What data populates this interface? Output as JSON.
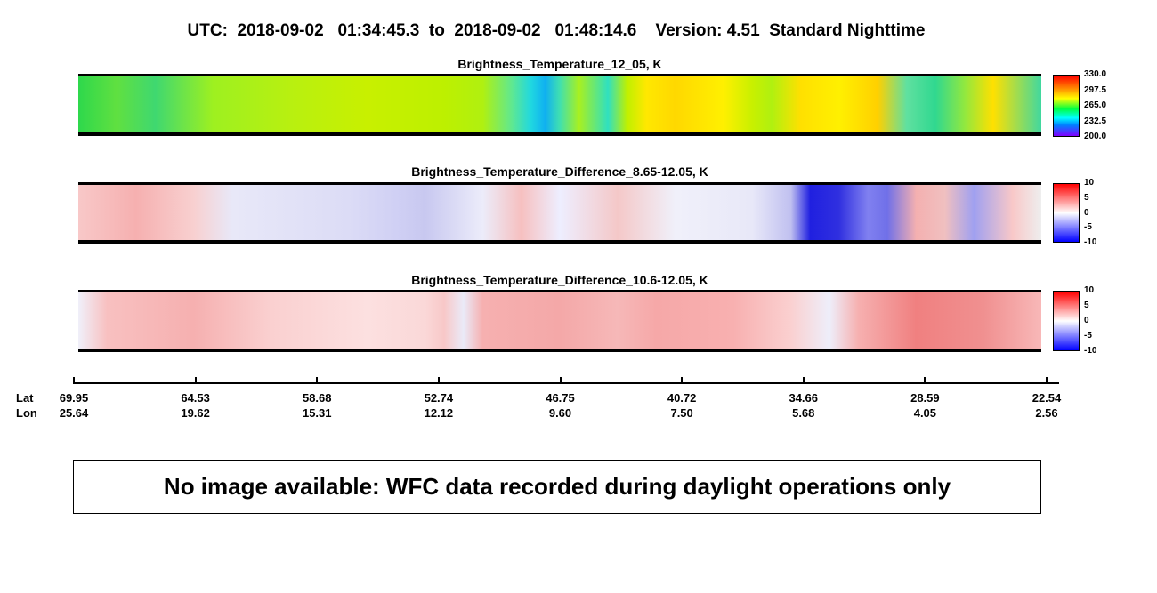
{
  "header": {
    "title": "UTC:  2018-09-02   01:34:45.3  to  2018-09-02   01:48:14.6    Version: 4.51  Standard Nighttime"
  },
  "panels": [
    {
      "title": "Brightness_Temperature_12_05, K",
      "colorbar_ticks": [
        "330.0",
        "297.5",
        "265.0",
        "232.5",
        "200.0"
      ]
    },
    {
      "title": "Brightness_Temperature_Difference_8.65-12.05, K",
      "colorbar_ticks": [
        "10",
        "5",
        "0",
        "-5",
        "-10"
      ]
    },
    {
      "title": "Brightness_Temperature_Difference_10.6-12.05, K",
      "colorbar_ticks": [
        "10",
        "5",
        "0",
        "-5",
        "-10"
      ]
    }
  ],
  "axis": {
    "row_labels": [
      "Lat",
      "Lon"
    ],
    "lat": [
      "69.95",
      "64.53",
      "58.68",
      "52.74",
      "46.75",
      "40.72",
      "34.66",
      "28.59",
      "22.54"
    ],
    "lon": [
      "25.64",
      "19.62",
      "15.31",
      "12.12",
      "9.60",
      "7.50",
      "5.68",
      "4.05",
      "2.56"
    ]
  },
  "notice": "No image available: WFC data recorded during daylight operations only"
}
